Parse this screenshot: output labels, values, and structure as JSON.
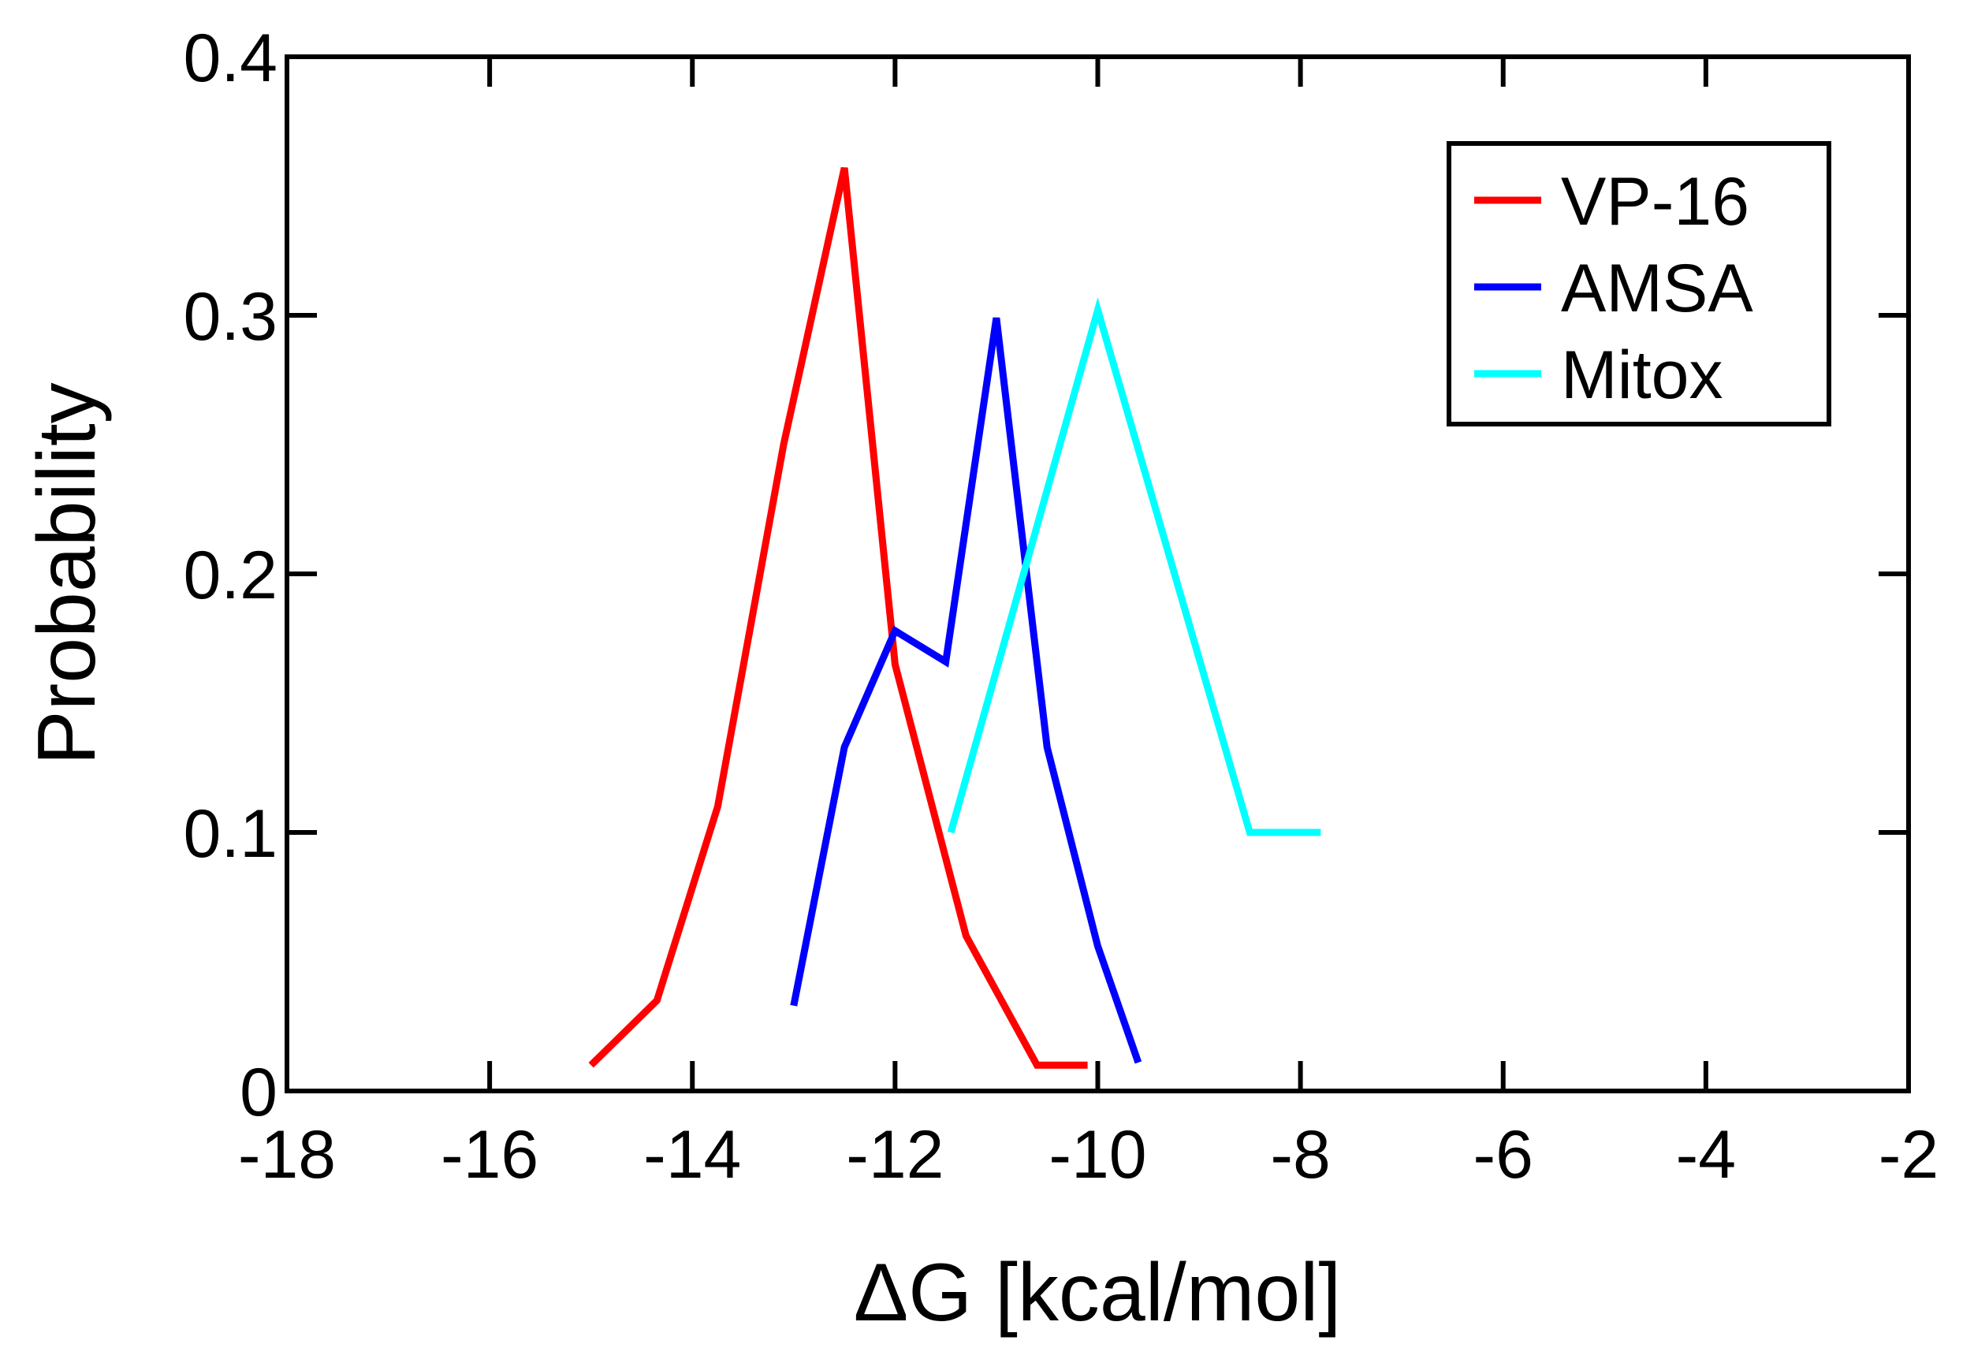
{
  "chart_data": {
    "type": "line",
    "title": "",
    "xlabel": "ΔG [kcal/mol]",
    "ylabel": "Probability",
    "xlim": [
      -18,
      -2
    ],
    "ylim": [
      0,
      0.4
    ],
    "xticks": [
      -18,
      -16,
      -14,
      -12,
      -10,
      -8,
      -6,
      -4,
      -2
    ],
    "xtick_labels": [
      "-18",
      "-16",
      "-14",
      "-12",
      "-10",
      "-8",
      "-6",
      "-4",
      "-2"
    ],
    "yticks": [
      0,
      0.1,
      0.2,
      0.3,
      0.4
    ],
    "ytick_labels": [
      "0",
      "0.1",
      "0.2",
      "0.3",
      "0.4"
    ],
    "grid": false,
    "legend_position": "top-right",
    "series": [
      {
        "name": "VP-16",
        "color": "#ff0000",
        "points": [
          [
            -15.0,
            0.01
          ],
          [
            -14.35,
            0.035
          ],
          [
            -13.75,
            0.11
          ],
          [
            -13.1,
            0.25
          ],
          [
            -12.5,
            0.357
          ],
          [
            -12.0,
            0.165
          ],
          [
            -11.3,
            0.06
          ],
          [
            -10.6,
            0.01
          ],
          [
            -10.1,
            0.01
          ]
        ]
      },
      {
        "name": "AMSA",
        "color": "#0000ff",
        "points": [
          [
            -13.0,
            0.033
          ],
          [
            -12.5,
            0.133
          ],
          [
            -12.0,
            0.178
          ],
          [
            -11.5,
            0.166
          ],
          [
            -11.0,
            0.299
          ],
          [
            -10.5,
            0.133
          ],
          [
            -10.0,
            0.056
          ],
          [
            -9.6,
            0.011
          ]
        ]
      },
      {
        "name": "Mitox",
        "color": "#00ffff",
        "points": [
          [
            -11.45,
            0.1
          ],
          [
            -10.0,
            0.302
          ],
          [
            -8.5,
            0.1
          ],
          [
            -7.8,
            0.1
          ]
        ]
      }
    ]
  }
}
